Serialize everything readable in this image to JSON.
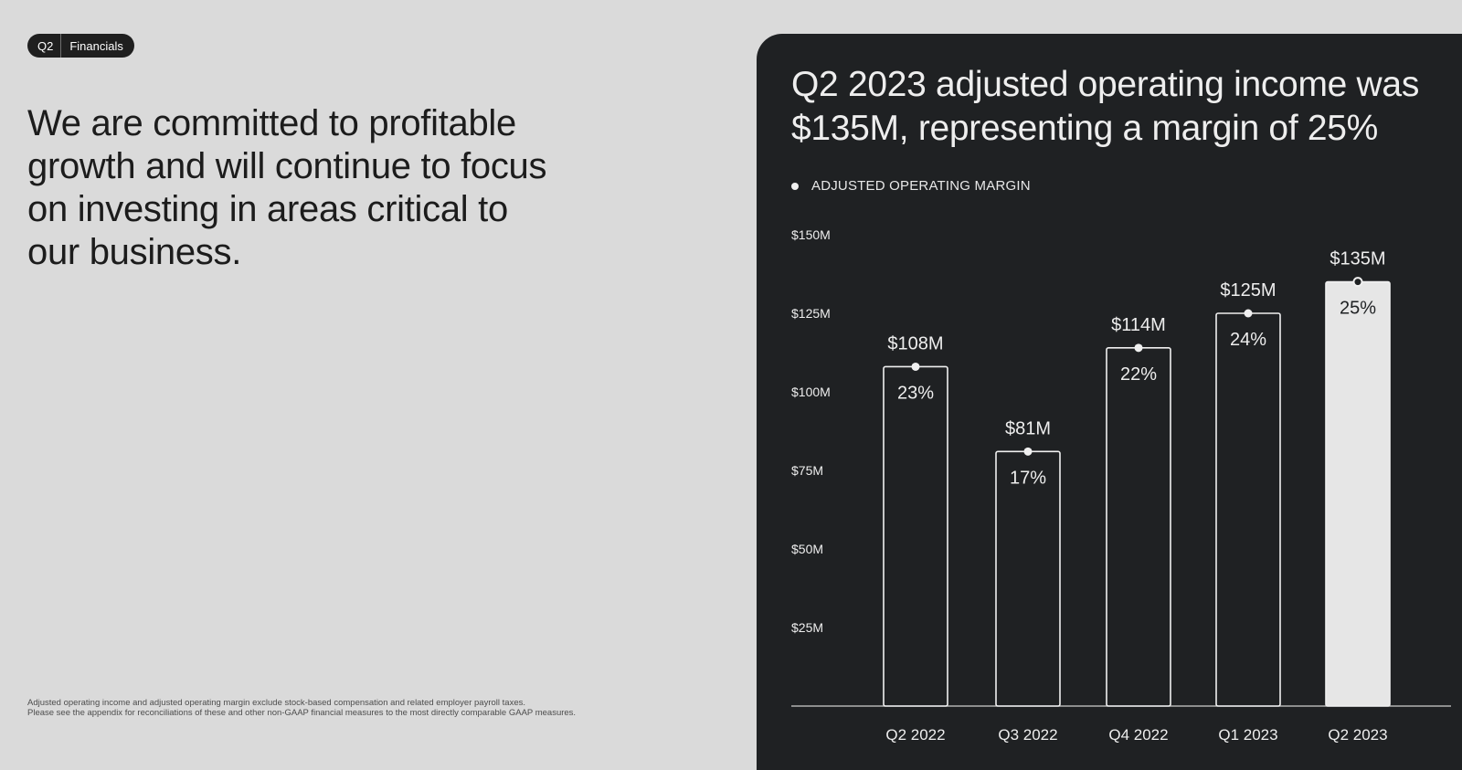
{
  "tag": {
    "section_num": "Q2",
    "section_name": "Financials"
  },
  "headline": "We are committed to profitable growth and will continue to focus on investing in areas critical to our business.",
  "footnote": {
    "line1": "Adjusted operating income and adjusted operating margin exclude stock-based compensation and related employer payroll taxes.",
    "line2": "Please see the appendix for reconciliations of these and other non-GAAP financial measures to the most directly comparable GAAP measures."
  },
  "panel": {
    "title": "Q2 2023 adjusted operating income was $135M, representing a margin of 25%",
    "legend_label": "ADJUSTED OPERATING MARGIN"
  },
  "colors": {
    "page_bg": "#dadada",
    "panel_bg": "#1f2123",
    "bar_outline": "#f0f0f0",
    "bar_highlight_fill": "#e6e6e6",
    "text_light": "#eeeeee",
    "text_dark": "#1c1c1c"
  },
  "chart_data": {
    "type": "bar",
    "categories": [
      "Q2 2022",
      "Q3 2022",
      "Q4 2022",
      "Q1 2023",
      "Q2 2023"
    ],
    "series": [
      {
        "values": [
          108,
          81,
          114,
          125,
          135
        ],
        "value_labels": [
          "$108M",
          "$81M",
          "$114M",
          "$125M",
          "$135M"
        ],
        "margin_labels": [
          "23%",
          "17%",
          "22%",
          "24%",
          "25%"
        ]
      }
    ],
    "highlight_index": 4,
    "ylim": [
      0,
      150
    ],
    "yticks": [
      25,
      50,
      75,
      100,
      125,
      150
    ],
    "ytick_labels": [
      "$25M",
      "$50M",
      "$75M",
      "$100M",
      "$125M",
      "$150M"
    ],
    "grid": false,
    "legend": "top-left"
  }
}
